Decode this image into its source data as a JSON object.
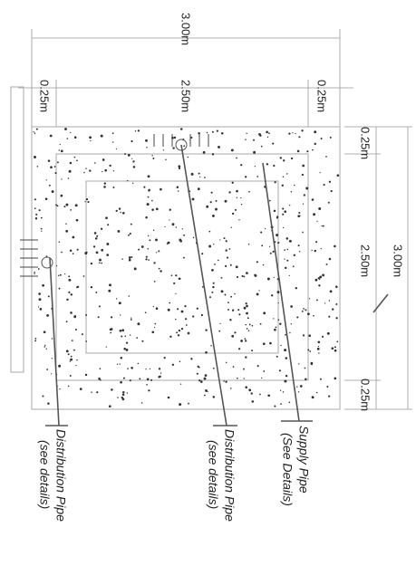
{
  "dimensions": {
    "top_overall": "3.00m",
    "top_left": "0.25m",
    "top_middle": "2.50m",
    "top_right": "0.25m",
    "right_top": "0.25m",
    "right_middle": "2.50m",
    "right_overall": "3.00m",
    "right_bottom": "0.25m"
  },
  "labels": [
    {
      "lines": [
        "Distribution Pipe",
        "(see details)"
      ]
    },
    {
      "lines": [
        "Distribution Pipe",
        "(see details)"
      ]
    },
    {
      "lines": [
        "Supply Pipe",
        "(See Details)"
      ]
    }
  ]
}
